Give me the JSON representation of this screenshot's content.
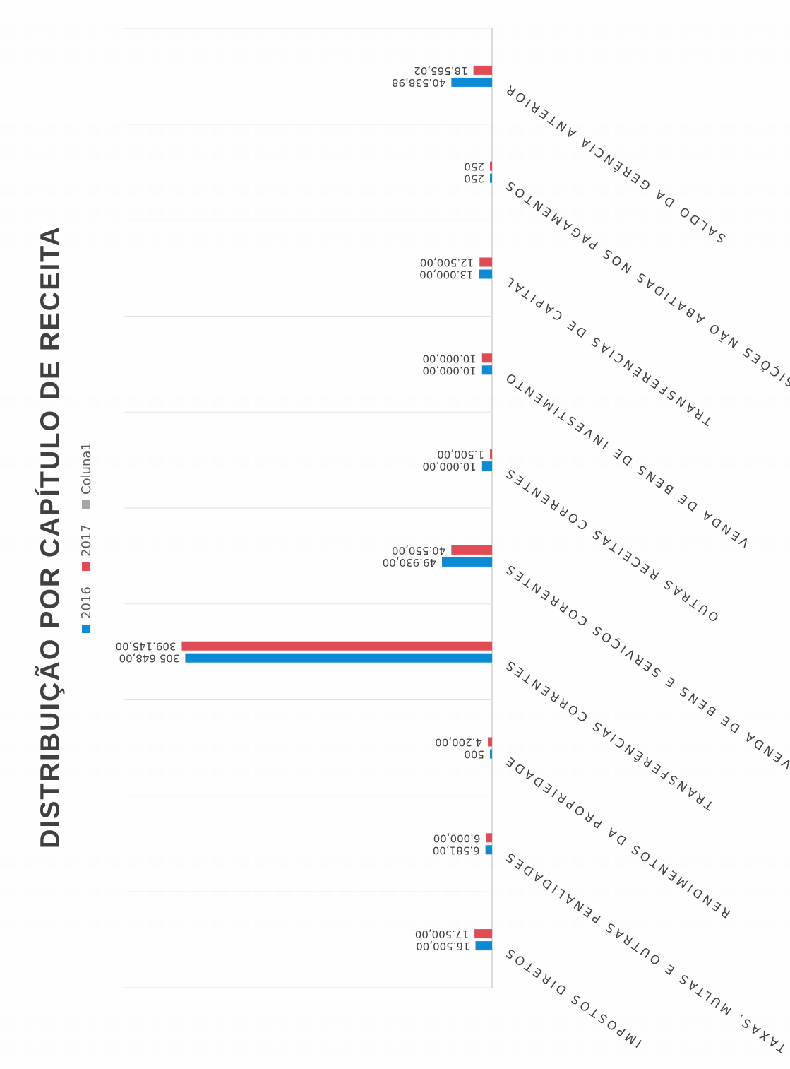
{
  "chart_data": {
    "type": "bar",
    "orientation": "horizontal",
    "title": "DISTRIBUIÇÃO POR CAPÍTULO DE RECEITA",
    "categories": [
      "IMPOSTOS DIRETOS",
      "TAXAS, MULTAS E OUTRAS PENALIDADES",
      "RENDIMENTOS DA PROPRIEDADE",
      "TRANSFERÊNCIAS CORRENTES",
      "VENDA DE BENS E SERVIÇOS CORRENTES",
      "OUTRAS RECEITAS CORRENTES",
      "VENDA DE BENS DE INVESTIMENTO",
      "TRANSFERÊNCIAS DE CAPITAL",
      "REPOSIÇÕES NÃO ABATIDAS NOS PAGAMENTOS",
      "SALDO DA GERÊNCIA ANTERIOR"
    ],
    "series": [
      {
        "name": "2016",
        "color": "#0b8ad6",
        "values": [
          16500,
          6581,
          500,
          305648,
          49930,
          10000,
          10000,
          13000,
          250,
          40538.98
        ],
        "labels": [
          "16.500,00",
          "6.581,00",
          "500",
          "305 648,00",
          "49.930,00",
          "10.000,00",
          "10.000,00",
          "13.000,00",
          "250",
          "40.538,98"
        ]
      },
      {
        "name": "2017",
        "color": "#e04b55",
        "values": [
          17500,
          6000,
          4200,
          309145,
          40550,
          1500,
          10000,
          12500,
          250,
          18565.02
        ],
        "labels": [
          "17.500,00",
          "6.000,00",
          "4.200,00",
          "309.145,00",
          "40.550,00",
          "1.500,00",
          "10.000,00",
          "12.500,00",
          "250",
          "18.565,02"
        ]
      }
    ],
    "legend": [
      "2016",
      "2017",
      "Coluna1"
    ],
    "legend_colors": [
      "#0b8ad6",
      "#e04b55",
      "#a6a6a6"
    ],
    "legend_position": "top",
    "xlim": [
      0,
      320000
    ],
    "grid": true
  }
}
